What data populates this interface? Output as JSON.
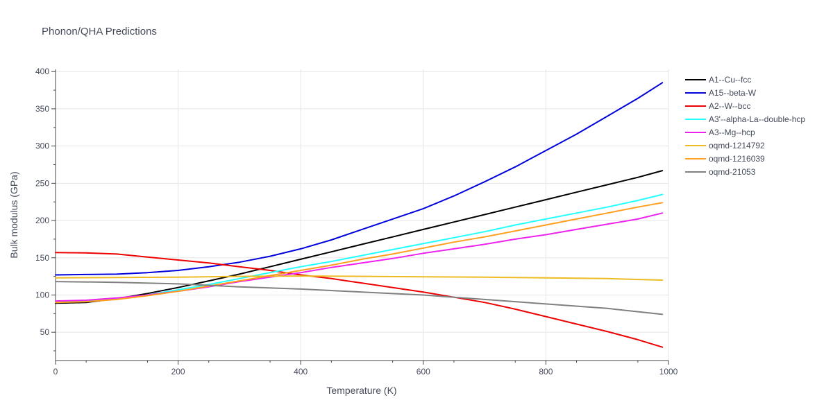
{
  "chart_data": {
    "type": "line",
    "title": "Phonon/QHA Predictions",
    "xlabel": "Temperature (K)",
    "ylabel": "Bulk modulus (GPa)",
    "xlim": [
      0,
      1000
    ],
    "ylim": [
      12,
      403
    ],
    "xticks": [
      0,
      200,
      400,
      600,
      800,
      1000
    ],
    "yticks": [
      50,
      100,
      150,
      200,
      250,
      300,
      350,
      400
    ],
    "grid": true,
    "legend_position": "top-right",
    "series": [
      {
        "name": "A1--Cu--fcc",
        "color": "#000000",
        "x": [
          0,
          50,
          100,
          150,
          200,
          250,
          300,
          350,
          400,
          450,
          500,
          550,
          600,
          650,
          700,
          750,
          800,
          850,
          900,
          950,
          990
        ],
        "y": [
          89,
          90,
          95,
          102,
          110,
          119,
          128,
          138,
          148,
          158,
          168,
          178,
          188,
          198,
          208,
          218,
          228,
          238,
          248,
          258,
          267
        ]
      },
      {
        "name": "A15--beta-W",
        "color": "#0000dd",
        "x": [
          0,
          50,
          100,
          150,
          200,
          250,
          300,
          350,
          400,
          450,
          500,
          550,
          600,
          650,
          700,
          750,
          800,
          850,
          900,
          950,
          990
        ],
        "y": [
          127,
          127.5,
          128,
          130,
          133,
          138,
          144,
          152,
          162,
          174,
          188,
          202,
          216,
          233,
          252,
          272,
          294,
          316,
          340,
          364,
          385
        ]
      },
      {
        "name": "A2--W--bcc",
        "color": "#ee0000",
        "x": [
          0,
          50,
          100,
          150,
          200,
          250,
          300,
          350,
          400,
          450,
          500,
          550,
          600,
          650,
          700,
          750,
          800,
          850,
          900,
          950,
          990
        ],
        "y": [
          157,
          156.5,
          155,
          151,
          147,
          143,
          138,
          133,
          127,
          122,
          116,
          110,
          104,
          97,
          90,
          81,
          71,
          61,
          51,
          40,
          30
        ]
      },
      {
        "name": "A3'--alpha-La--double-hcp",
        "color": "#22ffff",
        "x": [
          0,
          50,
          100,
          150,
          200,
          250,
          300,
          350,
          400,
          450,
          500,
          550,
          600,
          650,
          700,
          750,
          800,
          850,
          900,
          950,
          990
        ],
        "y": [
          91,
          92,
          95,
          100,
          107,
          114,
          122,
          130,
          138,
          145,
          153,
          161,
          169,
          177,
          185,
          194,
          202,
          210,
          218,
          227,
          235
        ]
      },
      {
        "name": "A3--Mg--hcp",
        "color": "#ee22ee",
        "x": [
          0,
          50,
          100,
          150,
          200,
          250,
          300,
          350,
          400,
          450,
          500,
          550,
          600,
          650,
          700,
          750,
          800,
          850,
          900,
          950,
          990
        ],
        "y": [
          92,
          93,
          96,
          100,
          105,
          111,
          118,
          124,
          130,
          137,
          143,
          149,
          156,
          162,
          168,
          175,
          181,
          188,
          195,
          202,
          210
        ]
      },
      {
        "name": "oqmd-1214792",
        "color": "#eebb22",
        "x": [
          0,
          100,
          200,
          300,
          400,
          500,
          600,
          700,
          800,
          900,
          990
        ],
        "y": [
          123,
          123.5,
          124,
          125,
          125.5,
          125,
          124.5,
          124,
          123,
          122,
          120
        ]
      },
      {
        "name": "oqmd-1216039",
        "color": "#ff9f1c",
        "x": [
          0,
          50,
          100,
          150,
          200,
          250,
          300,
          350,
          400,
          450,
          500,
          550,
          600,
          650,
          700,
          750,
          800,
          850,
          900,
          950,
          990
        ],
        "y": [
          90,
          91,
          94,
          99,
          105,
          112,
          119,
          126,
          133,
          140,
          148,
          155,
          163,
          171,
          178,
          186,
          194,
          202,
          210,
          218,
          224
        ]
      },
      {
        "name": "oqmd-21053",
        "color": "#808080",
        "x": [
          0,
          100,
          200,
          300,
          400,
          500,
          600,
          700,
          800,
          900,
          990
        ],
        "y": [
          118,
          117,
          115,
          111,
          108,
          104,
          100,
          94,
          88,
          82,
          74
        ]
      }
    ]
  }
}
